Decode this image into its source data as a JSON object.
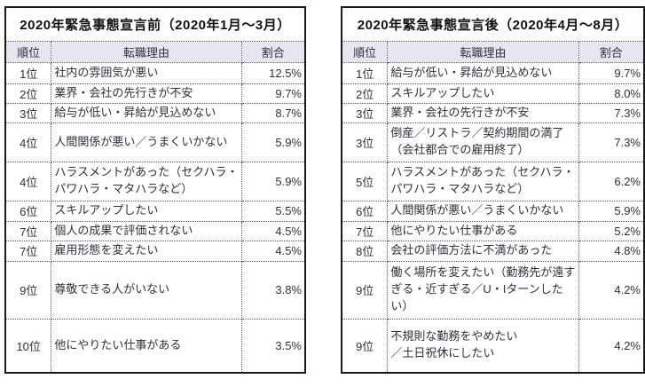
{
  "colors": {
    "header_bg": "#e6e6f2",
    "grid": "#595959",
    "frame": "#1a1a1a",
    "text": "#30303e",
    "title_text": "#111111"
  },
  "tables": [
    {
      "title": "2020年緊急事態宣言前（2020年1月～3月）",
      "columns": {
        "rank": "順位",
        "reason": "転職理由",
        "share": "割合"
      },
      "rows": [
        {
          "rank": "1位",
          "reason": "社内の雰囲気が悪い",
          "share": "12.5%"
        },
        {
          "rank": "2位",
          "reason": "業界・会社の先行きが不安",
          "share": "9.7%"
        },
        {
          "rank": "3位",
          "reason": "給与が低い・昇給が見込めない",
          "share": "8.7%"
        },
        {
          "rank": "4位",
          "reason": "人間関係が悪い／うまくいかない",
          "share": "5.9%"
        },
        {
          "rank": "4位",
          "reason": "ハラスメントがあった（セクハラ・パワハラ・マタハラなど）",
          "share": "5.9%"
        },
        {
          "rank": "6位",
          "reason": "スキルアップしたい",
          "share": "5.5%"
        },
        {
          "rank": "7位",
          "reason": "個人の成果で評価されない",
          "share": "4.5%"
        },
        {
          "rank": "7位",
          "reason": "雇用形態を変えたい",
          "share": "4.5%"
        },
        {
          "rank": "9位",
          "reason": "尊敬できる人がいない",
          "share": "3.8%"
        },
        {
          "rank": "10位",
          "reason": "他にやりたい仕事がある",
          "share": "3.5%"
        }
      ]
    },
    {
      "title": "2020年緊急事態宣言後（2020年4月～8月）",
      "columns": {
        "rank": "順位",
        "reason": "転職理由",
        "share": "割合"
      },
      "rows": [
        {
          "rank": "1位",
          "reason": "給与が低い・昇給が見込めない",
          "share": "9.7%"
        },
        {
          "rank": "2位",
          "reason": "スキルアップしたい",
          "share": "8.0%"
        },
        {
          "rank": "3位",
          "reason": "業界・会社の先行きが不安",
          "share": "7.3%"
        },
        {
          "rank": "3位",
          "reason": "倒産／リストラ／契約期間の満了\n（会社都合での雇用終了）",
          "share": "7.3%"
        },
        {
          "rank": "5位",
          "reason": "ハラスメントがあった（セクハラ・パワハラ・マタハラなど）",
          "share": "6.2%"
        },
        {
          "rank": "6位",
          "reason": "人間関係が悪い／うまくいかない",
          "share": "5.9%"
        },
        {
          "rank": "7位",
          "reason": "他にやりたい仕事がある",
          "share": "5.2%"
        },
        {
          "rank": "8位",
          "reason": "会社の評価方法に不満があった",
          "share": "4.8%"
        },
        {
          "rank": "9位",
          "reason": "働く場所を変えたい（勤務先が遠すぎる・近すぎる／U・Iターンしたい）",
          "share": "4.2%"
        },
        {
          "rank": "9位",
          "reason": "不規則な勤務をやめたい\n／土日祝休にしたい",
          "share": "4.2%"
        }
      ]
    }
  ]
}
